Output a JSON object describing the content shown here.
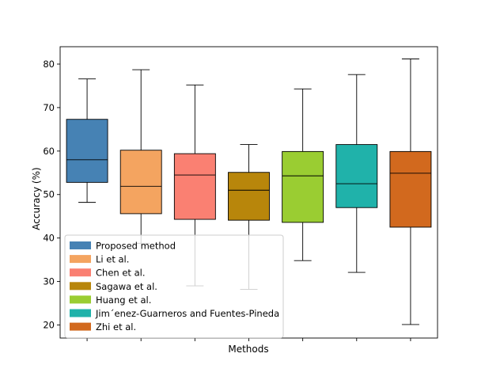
{
  "chart_data": {
    "type": "boxplot",
    "title": "",
    "xlabel": "Methods",
    "ylabel": "Accuracy (%)",
    "ylim": [
      17,
      84
    ],
    "yticks": [
      20,
      30,
      40,
      50,
      60,
      70,
      80
    ],
    "grid": false,
    "legend_position": "lower-left",
    "series": [
      {
        "name": "Proposed method",
        "color": "#4682b4",
        "whisker_low": 48.2,
        "q1": 52.8,
        "median": 58.0,
        "q3": 67.3,
        "whisker_high": 76.6
      },
      {
        "name": "Li et al.",
        "color": "#f4a460",
        "whisker_low": 38.8,
        "q1": 45.6,
        "median": 51.9,
        "q3": 60.2,
        "whisker_high": 78.7
      },
      {
        "name": "Chen et al.",
        "color": "#fa8072",
        "whisker_low": 29.0,
        "q1": 44.3,
        "median": 54.5,
        "q3": 59.4,
        "whisker_high": 75.2
      },
      {
        "name": "Sagawa et al.",
        "color": "#b8860b",
        "whisker_low": 28.2,
        "q1": 44.1,
        "median": 51.0,
        "q3": 55.1,
        "whisker_high": 61.5
      },
      {
        "name": "Huang et al.",
        "color": "#9acd32",
        "whisker_low": 34.8,
        "q1": 43.6,
        "median": 54.3,
        "q3": 59.9,
        "whisker_high": 74.3
      },
      {
        "name": "Jim´enez-Guarneros and Fuentes-Pineda",
        "color": "#20b2aa",
        "whisker_low": 32.1,
        "q1": 47.0,
        "median": 52.5,
        "q3": 61.5,
        "whisker_high": 77.6
      },
      {
        "name": "Zhi et al.",
        "color": "#d2691e",
        "whisker_low": 20.1,
        "q1": 42.5,
        "median": 54.9,
        "q3": 59.9,
        "whisker_high": 81.2
      }
    ]
  }
}
